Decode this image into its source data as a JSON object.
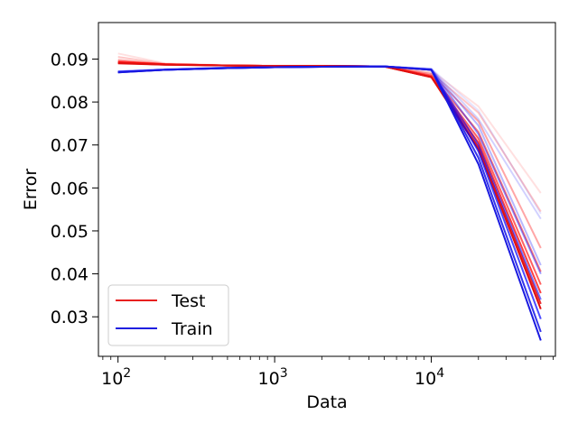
{
  "chart_data": {
    "type": "line",
    "xlabel": "Data",
    "ylabel": "Error",
    "xscale": "log",
    "xlim": [
      75,
      62000
    ],
    "ylim": [
      0.0208,
      0.0985
    ],
    "x": [
      100,
      200,
      500,
      1000,
      2000,
      5000,
      10000,
      20000,
      50000
    ],
    "xticks": [
      100,
      1000,
      10000
    ],
    "xtick_labels": [
      {
        "base": "10",
        "exp": "2"
      },
      {
        "base": "10",
        "exp": "3"
      },
      {
        "base": "10",
        "exp": "4"
      }
    ],
    "yticks": [
      0.03,
      0.04,
      0.05,
      0.06,
      0.07,
      0.08,
      0.09
    ],
    "ytick_labels": [
      "0.03",
      "0.04",
      "0.05",
      "0.06",
      "0.07",
      "0.08",
      "0.09"
    ],
    "grid": false,
    "legend": {
      "placement": "lower-left",
      "entries": [
        {
          "label": "Test",
          "color": "#e8201f"
        },
        {
          "label": "Train",
          "color": "#1f1fe0"
        }
      ]
    },
    "series": [
      {
        "group": "Test",
        "color": "#ff0000",
        "opacity": 0.12,
        "values": [
          0.0913,
          0.089,
          0.0886,
          0.0885,
          0.0885,
          0.0883,
          0.0873,
          0.079,
          0.0588
        ]
      },
      {
        "group": "Test",
        "color": "#ff0000",
        "opacity": 0.22,
        "values": [
          0.0905,
          0.0889,
          0.0885,
          0.0884,
          0.0884,
          0.0883,
          0.0868,
          0.0775,
          0.0545
        ]
      },
      {
        "group": "Test",
        "color": "#ff0000",
        "opacity": 0.35,
        "values": [
          0.0898,
          0.0888,
          0.0885,
          0.0884,
          0.0884,
          0.0883,
          0.0865,
          0.0755,
          0.046
        ]
      },
      {
        "group": "Test",
        "color": "#ff0000",
        "opacity": 0.5,
        "values": [
          0.0895,
          0.0888,
          0.0885,
          0.0884,
          0.0884,
          0.0883,
          0.0862,
          0.073,
          0.0405
        ]
      },
      {
        "group": "Test",
        "color": "#ff0000",
        "opacity": 0.62,
        "values": [
          0.0893,
          0.0888,
          0.0885,
          0.0884,
          0.0884,
          0.0883,
          0.086,
          0.0715,
          0.0375
        ]
      },
      {
        "group": "Test",
        "color": "#ff0000",
        "opacity": 0.75,
        "values": [
          0.0892,
          0.0888,
          0.0885,
          0.0884,
          0.0884,
          0.0883,
          0.0858,
          0.0705,
          0.0355
        ]
      },
      {
        "group": "Test",
        "color": "#e81010",
        "opacity": 0.88,
        "values": [
          0.0891,
          0.0887,
          0.0885,
          0.0884,
          0.0884,
          0.0883,
          0.0858,
          0.0695,
          0.033
        ]
      },
      {
        "group": "Test",
        "color": "#e01010",
        "opacity": 1.0,
        "values": [
          0.089,
          0.0887,
          0.0885,
          0.0884,
          0.0884,
          0.0883,
          0.0858,
          0.069,
          0.0318
        ]
      },
      {
        "group": "Train",
        "color": "#0000ff",
        "opacity": 0.1,
        "values": [
          0.0872,
          0.0876,
          0.088,
          0.0881,
          0.0882,
          0.0883,
          0.0878,
          0.078,
          0.054
        ]
      },
      {
        "group": "Train",
        "color": "#0000ff",
        "opacity": 0.18,
        "values": [
          0.0871,
          0.0876,
          0.088,
          0.0881,
          0.0882,
          0.0883,
          0.0877,
          0.076,
          0.0528
        ]
      },
      {
        "group": "Train",
        "color": "#0000ff",
        "opacity": 0.28,
        "values": [
          0.0871,
          0.0876,
          0.088,
          0.0881,
          0.0882,
          0.0883,
          0.0876,
          0.0745,
          0.042
        ]
      },
      {
        "group": "Train",
        "color": "#0000ff",
        "opacity": 0.4,
        "values": [
          0.087,
          0.0875,
          0.088,
          0.0881,
          0.0882,
          0.0883,
          0.0876,
          0.0725,
          0.04
        ]
      },
      {
        "group": "Train",
        "color": "#0000ff",
        "opacity": 0.55,
        "values": [
          0.087,
          0.0875,
          0.0879,
          0.0881,
          0.0882,
          0.0883,
          0.0875,
          0.07,
          0.034
        ]
      },
      {
        "group": "Train",
        "color": "#0000ff",
        "opacity": 0.7,
        "values": [
          0.087,
          0.0875,
          0.0879,
          0.0881,
          0.0882,
          0.0883,
          0.0875,
          0.0685,
          0.0295
        ]
      },
      {
        "group": "Train",
        "color": "#1010e8",
        "opacity": 0.85,
        "values": [
          0.0869,
          0.0875,
          0.0879,
          0.0881,
          0.0882,
          0.0883,
          0.0875,
          0.067,
          0.0265
        ]
      },
      {
        "group": "Train",
        "color": "#1a1ae0",
        "opacity": 1.0,
        "values": [
          0.0869,
          0.0875,
          0.0879,
          0.0881,
          0.0882,
          0.0883,
          0.0875,
          0.0655,
          0.0245
        ]
      }
    ]
  }
}
